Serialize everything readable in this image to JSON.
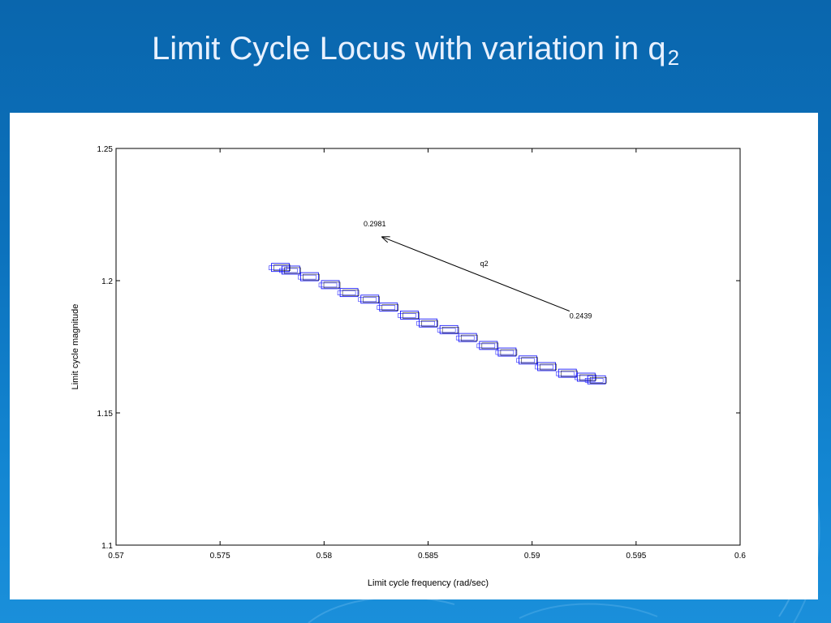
{
  "slide": {
    "title_main": "Limit Cycle Locus with variation in q",
    "title_sub": "2"
  },
  "colors": {
    "background": "#0c72bd",
    "title": "#e8f1ff",
    "series_primary": "#0000ff",
    "series_secondary": "#000000"
  },
  "chart_data": {
    "type": "scatter",
    "title": "",
    "xlabel": "Limit cycle frequency (rad/sec)",
    "ylabel": "Limit cycle magnitude",
    "xlim": [
      0.57,
      0.6
    ],
    "ylim": [
      1.1,
      1.25
    ],
    "xticks": [
      0.57,
      0.575,
      0.58,
      0.585,
      0.59,
      0.595,
      0.6
    ],
    "xtick_labels": [
      "0.57",
      "0.575",
      "0.58",
      "0.585",
      "0.59",
      "0.595",
      "0.6"
    ],
    "yticks": [
      1.1,
      1.15,
      1.2,
      1.25
    ],
    "ytick_labels": [
      "1.1",
      "1.15",
      "1.2",
      "1.25"
    ],
    "grid": false,
    "series": [
      {
        "marker": "rectangle",
        "x": [
          0.5779,
          0.5784,
          0.5793,
          0.5803,
          0.5812,
          0.5822,
          0.5831,
          0.5841,
          0.585,
          0.586,
          0.5869,
          0.5879,
          0.5888,
          0.5898,
          0.5907,
          0.5917,
          0.5926,
          0.5931
        ],
        "y": [
          1.205,
          1.204,
          1.2015,
          1.1985,
          1.1955,
          1.193,
          1.19,
          1.187,
          1.184,
          1.1815,
          1.1785,
          1.1755,
          1.173,
          1.17,
          1.1675,
          1.165,
          1.1635,
          1.1625
        ]
      }
    ],
    "annotations": [
      {
        "text": "0.2981",
        "x": 0.5819,
        "y": 1.2205
      },
      {
        "text": "q2",
        "x": 0.5875,
        "y": 1.2055
      },
      {
        "text": "0.2439",
        "x": 0.5918,
        "y": 1.1858
      }
    ],
    "arrow": {
      "from": [
        0.5918,
        1.1885
      ],
      "to": [
        0.5828,
        1.2165
      ]
    }
  }
}
